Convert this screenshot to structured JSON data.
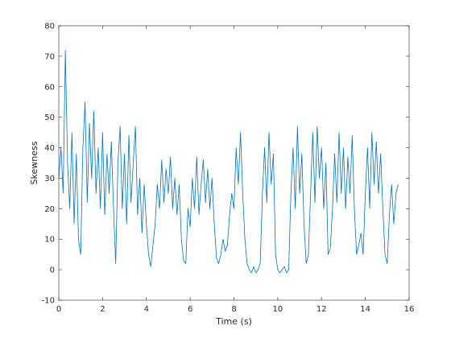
{
  "chart_data": {
    "type": "line",
    "xlabel": "Time (s)",
    "ylabel": "Skewness",
    "color": "#0072bd",
    "xlim": [
      0,
      16
    ],
    "xticks": [
      0,
      2,
      4,
      6,
      8,
      10,
      12,
      14,
      16
    ],
    "ylim": [
      -10,
      80
    ],
    "yticks": [
      -10,
      0,
      10,
      20,
      30,
      40,
      50,
      60,
      70,
      80
    ],
    "grid": false,
    "x": [
      0,
      0.1,
      0.2,
      0.3,
      0.4,
      0.5,
      0.6,
      0.7,
      0.8,
      0.9,
      1,
      1.1,
      1.2,
      1.3,
      1.4,
      1.5,
      1.6,
      1.7,
      1.8,
      1.9,
      2,
      2.1,
      2.2,
      2.3,
      2.4,
      2.5,
      2.6,
      2.7,
      2.8,
      2.9,
      3,
      3.1,
      3.2,
      3.3,
      3.4,
      3.5,
      3.6,
      3.7,
      3.8,
      3.9,
      4,
      4.1,
      4.2,
      4.3,
      4.4,
      4.5,
      4.6,
      4.7,
      4.8,
      4.9,
      5,
      5.1,
      5.2,
      5.3,
      5.4,
      5.5,
      5.6,
      5.7,
      5.8,
      5.9,
      6,
      6.1,
      6.2,
      6.3,
      6.4,
      6.5,
      6.6,
      6.7,
      6.8,
      6.9,
      7,
      7.1,
      7.2,
      7.3,
      7.4,
      7.5,
      7.6,
      7.7,
      7.8,
      7.9,
      8,
      8.1,
      8.2,
      8.3,
      8.4,
      8.5,
      8.6,
      8.7,
      8.8,
      8.9,
      9,
      9.1,
      9.2,
      9.3,
      9.4,
      9.5,
      9.6,
      9.7,
      9.8,
      9.9,
      10,
      10.1,
      10.2,
      10.3,
      10.4,
      10.5,
      10.6,
      10.7,
      10.8,
      10.9,
      11,
      11.1,
      11.2,
      11.3,
      11.4,
      11.5,
      11.6,
      11.7,
      11.8,
      11.9,
      12,
      12.1,
      12.2,
      12.3,
      12.4,
      12.5,
      12.6,
      12.7,
      12.8,
      12.9,
      13,
      13.1,
      13.2,
      13.3,
      13.4,
      13.5,
      13.6,
      13.7,
      13.8,
      13.9,
      14,
      14.1,
      14.2,
      14.3,
      14.4,
      14.5,
      14.6,
      14.7,
      14.8,
      14.9,
      15,
      15.1,
      15.2,
      15.3,
      15.4,
      15.5
    ],
    "values": [
      30,
      40,
      25,
      72,
      35,
      20,
      45,
      15,
      38,
      10,
      5,
      40,
      55,
      22,
      48,
      30,
      52,
      25,
      40,
      20,
      45,
      18,
      38,
      25,
      42,
      20,
      2,
      35,
      47,
      20,
      38,
      15,
      44,
      22,
      35,
      47,
      18,
      30,
      12,
      28,
      15,
      5,
      1,
      8,
      15,
      28,
      20,
      36,
      22,
      33,
      25,
      37,
      20,
      30,
      18,
      28,
      10,
      3,
      2,
      20,
      14,
      30,
      20,
      37,
      18,
      28,
      36,
      22,
      33,
      20,
      30,
      15,
      4,
      2,
      5,
      10,
      6,
      8,
      18,
      25,
      20,
      40,
      28,
      45,
      25,
      10,
      2,
      0,
      -1,
      1,
      -1,
      0,
      2,
      25,
      40,
      22,
      45,
      28,
      38,
      5,
      0,
      -1,
      0,
      1,
      -1,
      0,
      25,
      40,
      20,
      47,
      25,
      38,
      15,
      2,
      5,
      25,
      45,
      22,
      47,
      30,
      40,
      20,
      35,
      5,
      7,
      20,
      38,
      22,
      45,
      25,
      40,
      20,
      37,
      25,
      44,
      20,
      5,
      8,
      12,
      5,
      25,
      40,
      20,
      45,
      28,
      42,
      25,
      38,
      20,
      5,
      2,
      18,
      28,
      15,
      25,
      28
    ]
  }
}
